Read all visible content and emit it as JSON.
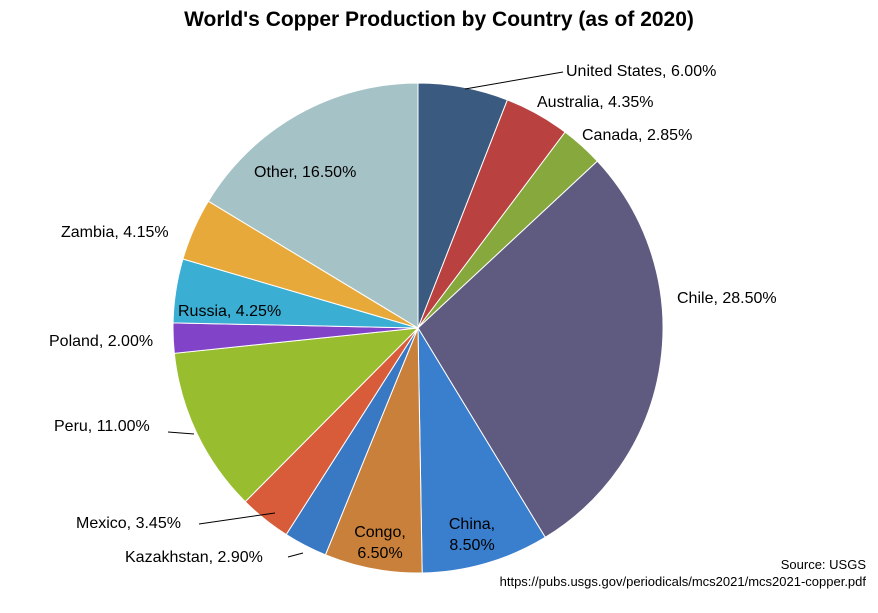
{
  "chart_data": {
    "type": "pie",
    "title": "World's Copper Production by Country (as of 2020)",
    "slices": [
      {
        "label": "United States, 6.00%",
        "value": 6.0,
        "color": "#3b5a80"
      },
      {
        "label": "Australia, 4.35%",
        "value": 4.35,
        "color": "#b94140"
      },
      {
        "label": "Canada, 2.85%",
        "value": 2.85,
        "color": "#86a83d"
      },
      {
        "label": "Chile, 28.50%",
        "value": 28.5,
        "color": "#5e5a80"
      },
      {
        "label": "China, 8.50%",
        "value": 8.5,
        "color": "#3a7ece"
      },
      {
        "label": "Congo, 6.50%",
        "value": 6.5,
        "color": "#c9803a"
      },
      {
        "label": "Kazakhstan, 2.90%",
        "value": 2.9,
        "color": "#3978c2"
      },
      {
        "label": "Mexico, 3.45%",
        "value": 3.45,
        "color": "#d85b3a"
      },
      {
        "label": "Peru, 11.00%",
        "value": 11.0,
        "color": "#98bd2f"
      },
      {
        "label": "Poland, 2.00%",
        "value": 2.0,
        "color": "#8144c9"
      },
      {
        "label": "Russia, 4.25%",
        "value": 4.25,
        "color": "#3aaed3"
      },
      {
        "label": "Zambia, 4.15%",
        "value": 4.15,
        "color": "#e8a93b"
      },
      {
        "label": "Other, 16.50%",
        "value": 16.5,
        "color": "#a5c3c6"
      }
    ]
  },
  "source": {
    "label": "Source:  USGS",
    "url": "https://pubs.usgs.gov/periodicals/mcs2021/mcs2021-copper.pdf"
  }
}
